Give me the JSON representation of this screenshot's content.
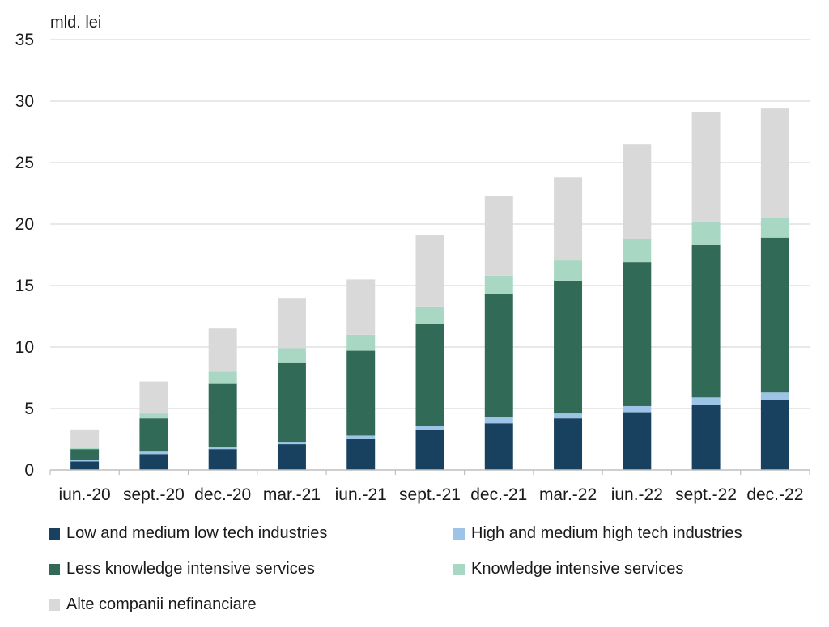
{
  "chart_data": {
    "type": "bar",
    "stacked": true,
    "unit_label": "mld. lei",
    "categories": [
      "iun.-20",
      "sept.-20",
      "dec.-20",
      "mar.-21",
      "iun.-21",
      "sept.-21",
      "dec.-21",
      "mar.-22",
      "iun.-22",
      "sept.-22",
      "dec.-22"
    ],
    "yticks": [
      "0",
      "5",
      "10",
      "15",
      "20",
      "25",
      "30",
      "35"
    ],
    "ylim": [
      0,
      35
    ],
    "grid": true,
    "legend_position": "bottom",
    "series": [
      {
        "name": "Low and medium low tech industries",
        "color": "#17415F",
        "values": [
          0.7,
          1.3,
          1.7,
          2.1,
          2.5,
          3.3,
          3.8,
          4.2,
          4.7,
          5.3,
          5.7
        ]
      },
      {
        "name": "High and medium high tech industries",
        "color": "#9DC3E6",
        "values": [
          0.1,
          0.2,
          0.2,
          0.2,
          0.3,
          0.3,
          0.5,
          0.4,
          0.5,
          0.6,
          0.6
        ]
      },
      {
        "name": "Less knowledge intensive services",
        "color": "#316B58",
        "values": [
          0.9,
          2.7,
          5.1,
          6.4,
          6.9,
          8.3,
          10.0,
          10.8,
          11.7,
          12.4,
          12.6
        ]
      },
      {
        "name": "Knowledge intensive services",
        "color": "#A8D8C4",
        "values": [
          0.1,
          0.4,
          1.0,
          1.2,
          1.3,
          1.4,
          1.5,
          1.7,
          1.9,
          1.9,
          1.6
        ]
      },
      {
        "name": "Alte companii nefinanciare",
        "color": "#D9D9D9",
        "values": [
          1.5,
          2.6,
          3.5,
          4.1,
          4.5,
          5.8,
          6.5,
          6.7,
          7.7,
          8.9,
          8.9
        ]
      }
    ]
  }
}
